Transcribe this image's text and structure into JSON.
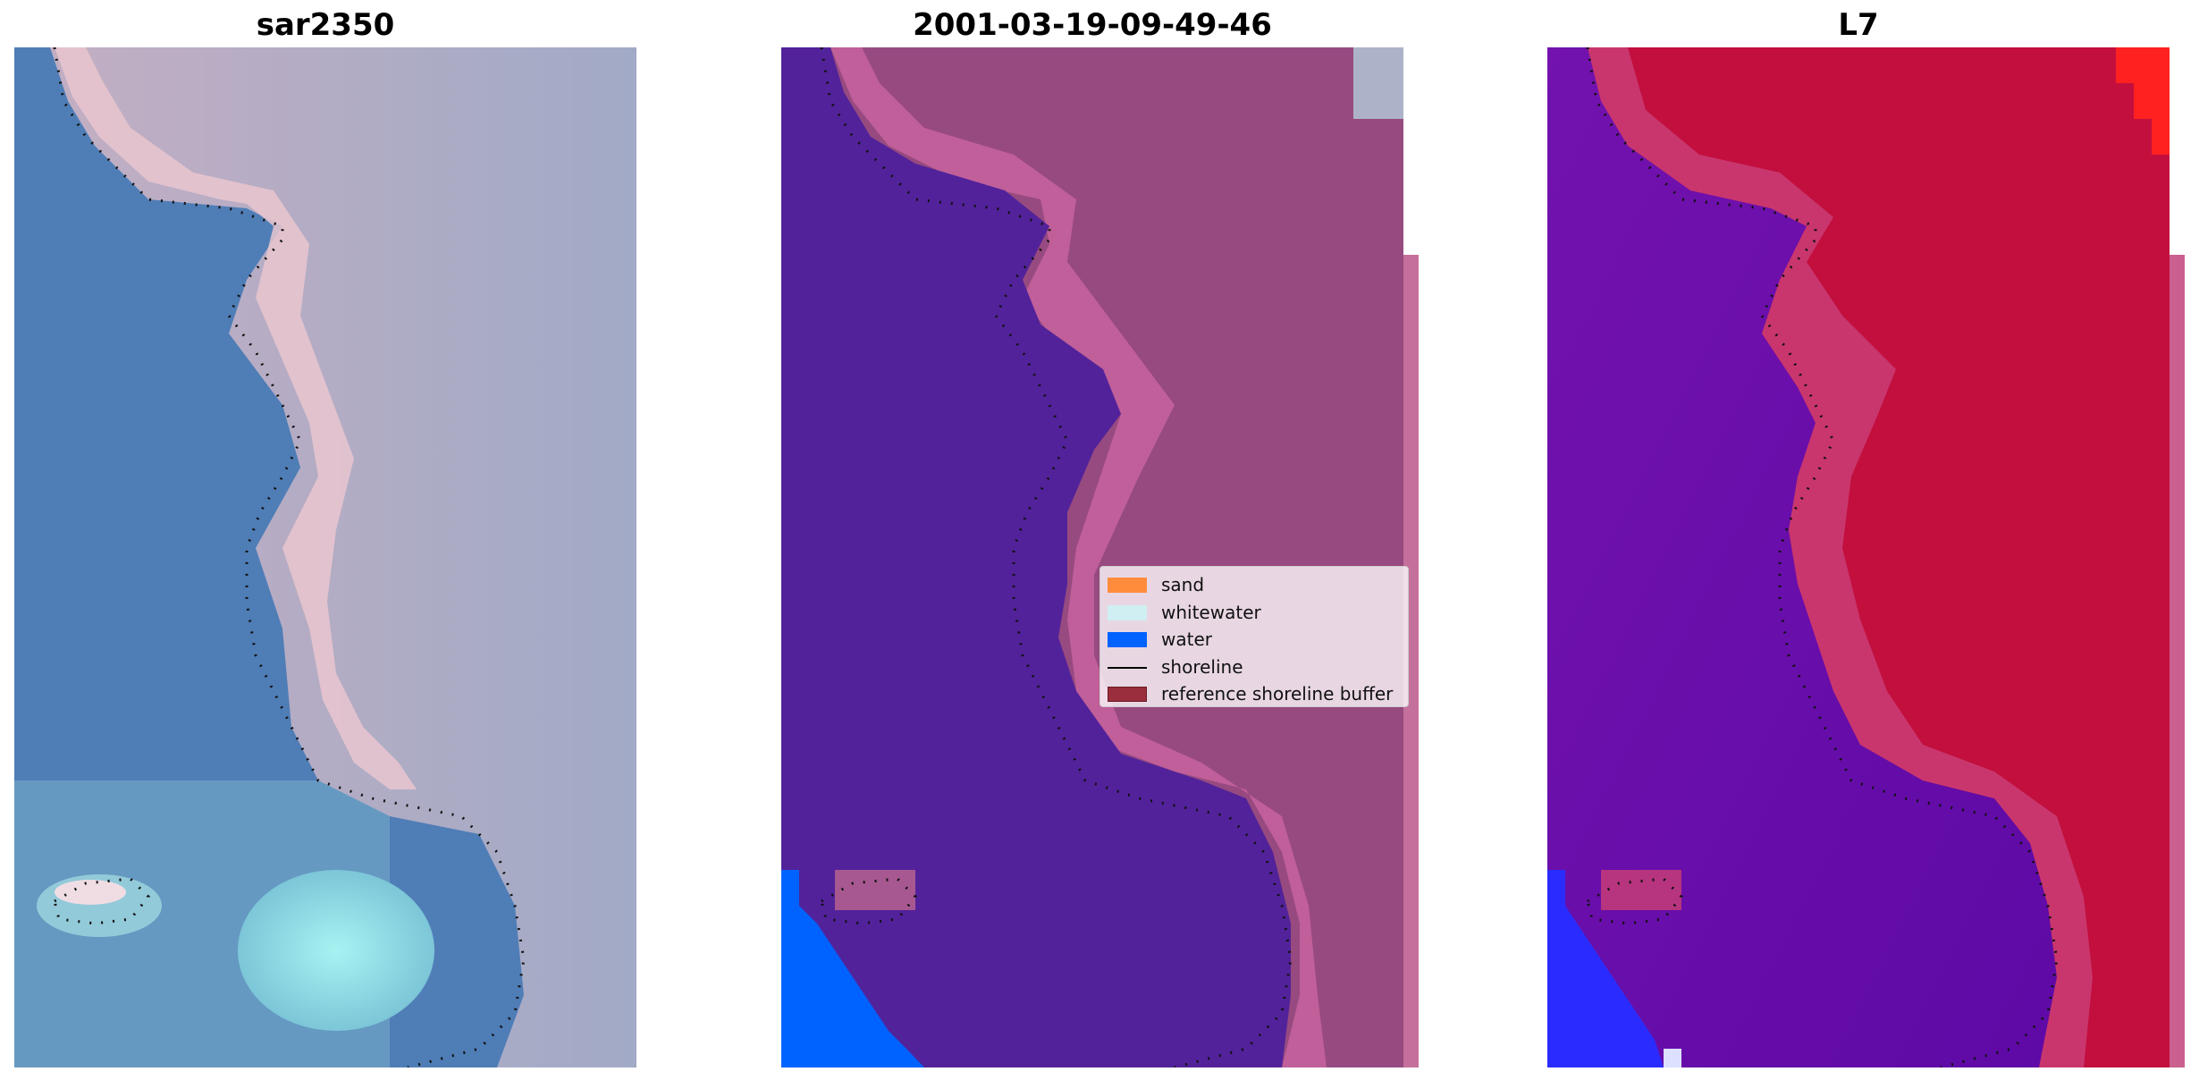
{
  "chart_data": [
    {
      "type": "heatmap",
      "title": "sar2350",
      "colors": {
        "water": "#4f7cb5",
        "sea_mid": "#5a8fc2",
        "land": "#a9aec6",
        "sand_edge": "#ecc4cc",
        "whitewater": "#9fe9ea",
        "shoreline": "#111111"
      }
    },
    {
      "type": "heatmap",
      "title": "2001-03-19-09-49-46",
      "colors": {
        "water_class": "#52229a",
        "land_class": "#9a4a7e",
        "buffer": "#c35e98",
        "water": "#0062ff",
        "corner": "#aeb2c9",
        "shoreline": "#111111"
      },
      "legend": {
        "placement": "center-right",
        "entries": [
          {
            "label": "sand",
            "color": "#ff8c3c",
            "kind": "patch"
          },
          {
            "label": "whitewater",
            "color": "#cfeff2",
            "kind": "patch"
          },
          {
            "label": "water",
            "color": "#0062ff",
            "kind": "patch"
          },
          {
            "label": "shoreline",
            "color": "#000000",
            "kind": "line"
          },
          {
            "label": "reference shoreline buffer",
            "color": "#9b2e3c",
            "kind": "patch"
          }
        ]
      }
    },
    {
      "type": "heatmap",
      "title": "L7",
      "colors": {
        "water": "#6b12b0",
        "water_deep": "#5a0aa8",
        "land": "#c20f3e",
        "buffer": "#cf5796",
        "bright_red": "#ff2020",
        "blue_pixels": "#2a2cff",
        "shoreline": "#111111"
      }
    }
  ]
}
